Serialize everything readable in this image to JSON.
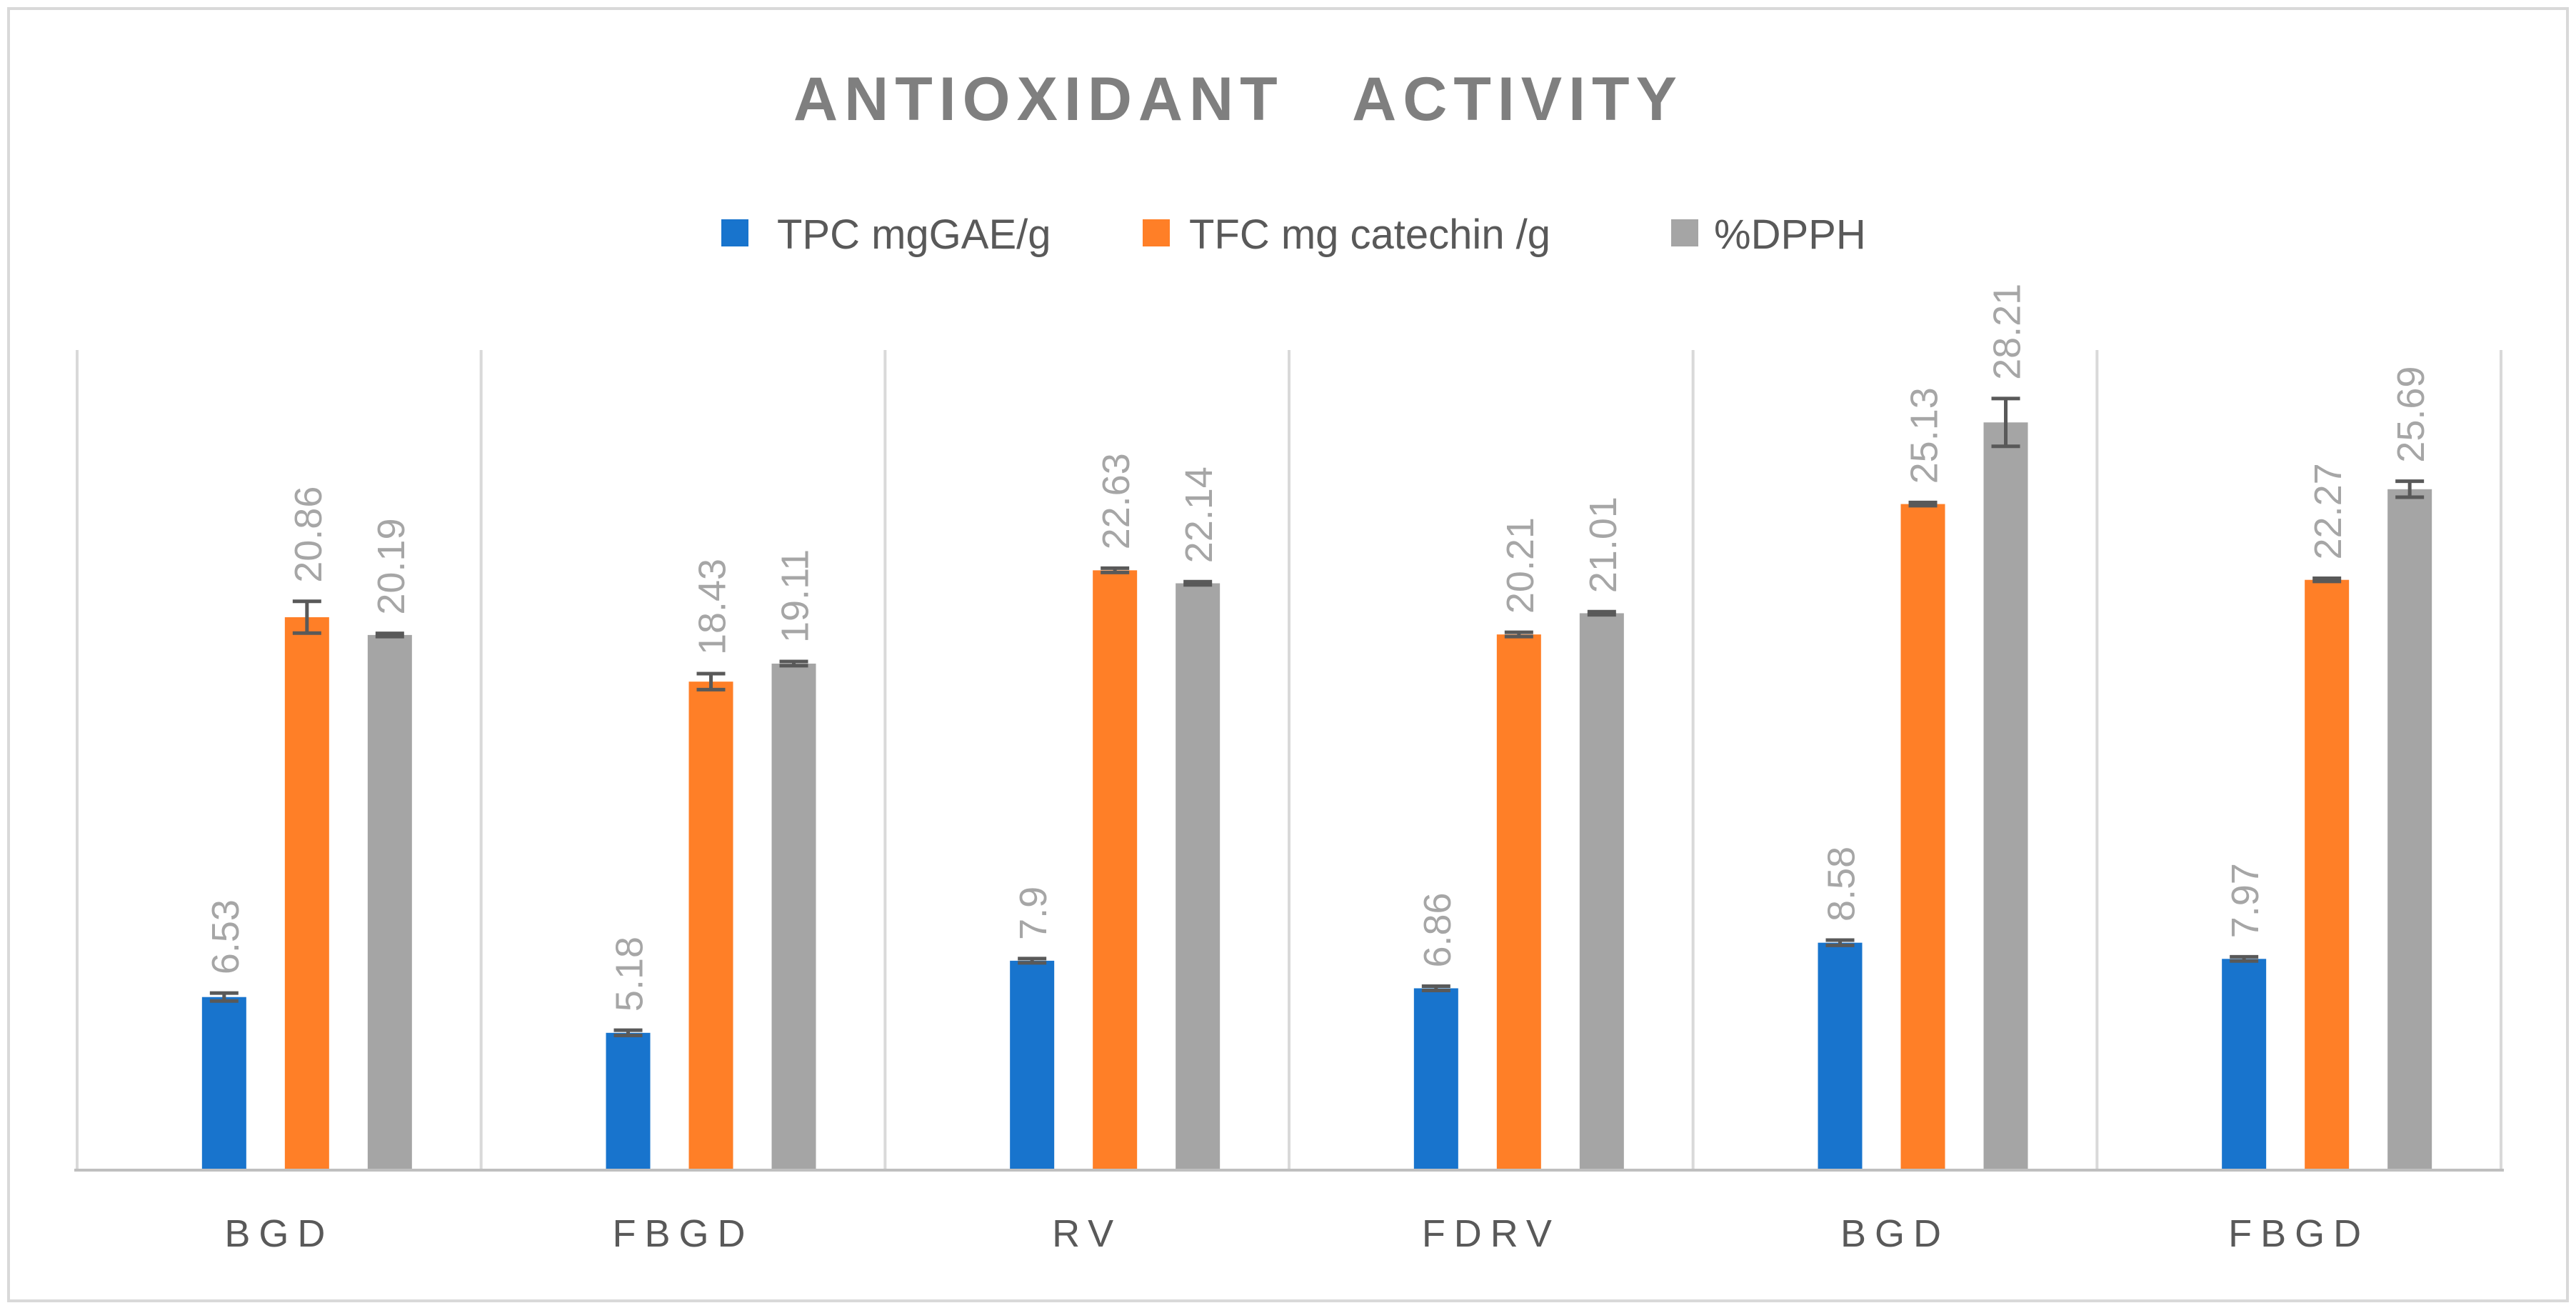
{
  "chart_data": {
    "type": "bar",
    "title": "ANTIOXIDANT   ACTIVITY",
    "categories": [
      "BGD",
      "FBGD",
      "RV",
      "FDRV",
      "BGD",
      "FBGD"
    ],
    "series": [
      {
        "name": "TPC mgGAE/g",
        "color": "#1874CD",
        "values": [
          6.53,
          5.18,
          7.9,
          6.86,
          8.58,
          7.97
        ],
        "labels": [
          "6.53",
          "5.18",
          "7.9",
          "6.86",
          "8.58",
          "7.97"
        ],
        "errors": [
          0.15,
          0.1,
          0.08,
          0.08,
          0.1,
          0.08
        ]
      },
      {
        "name": "TFC mg catechin /g",
        "color": "#FF7F27",
        "values": [
          20.86,
          18.43,
          22.63,
          20.21,
          25.13,
          22.27
        ],
        "labels": [
          "20.86",
          "18.43",
          "22.63",
          "20.21",
          "25.13",
          "22.27"
        ],
        "errors": [
          0.6,
          0.3,
          0.08,
          0.08,
          0.06,
          0.06
        ]
      },
      {
        "name": "%DPPH",
        "color": "#A5A5A5",
        "values": [
          20.19,
          19.11,
          22.14,
          21.01,
          28.21,
          25.69
        ],
        "labels": [
          "20.19",
          "19.11",
          "22.14",
          "21.01",
          "28.21",
          "25.69"
        ],
        "errors": [
          0.06,
          0.08,
          0.06,
          0.06,
          0.9,
          0.3
        ]
      }
    ],
    "xlabel": "",
    "ylabel": "",
    "ylim": [
      0,
      35
    ],
    "grid": "vertical separators between categories",
    "legend": "top-center"
  }
}
